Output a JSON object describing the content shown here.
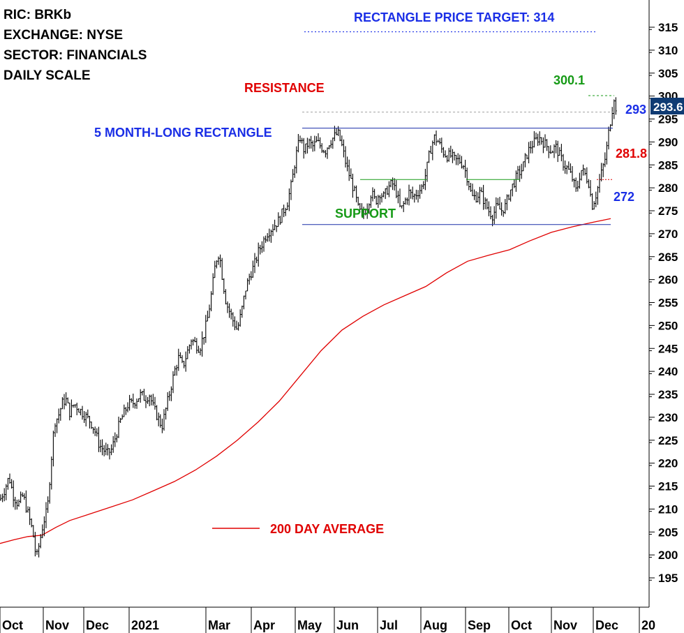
{
  "chart_data": {
    "type": "ohlc-bar",
    "info": {
      "lines": [
        "RIC: BRKb",
        "EXCHANGE: NYSE",
        "SECTOR: FINANCIALS",
        "DAILY SCALE"
      ]
    },
    "annotations": {
      "target": "RECTANGLE PRICE TARGET: 314",
      "pattern": "5 MONTH-LONG RECTANGLE",
      "resistance": "RESISTANCE",
      "support": "SUPPORT",
      "level_300": "300.1",
      "level_293": "293",
      "level_281": "281.8",
      "level_272": "272",
      "last_price": "293.6",
      "ma_legend": "200 DAY  AVERAGE"
    },
    "y_ticks": [
      "195",
      "200",
      "205",
      "210",
      "215",
      "220",
      "225",
      "230",
      "235",
      "240",
      "245",
      "250",
      "255",
      "260",
      "265",
      "270",
      "275",
      "280",
      "285",
      "290",
      "295",
      "300",
      "305",
      "310",
      "315"
    ],
    "y_range": [
      190,
      318
    ],
    "x_ticks": [
      "Oct",
      "Nov",
      "Dec",
      "2021",
      "Mar",
      "Apr",
      "May",
      "Jun",
      "Jul",
      "Aug",
      "Sep",
      "Oct",
      "Nov",
      "Dec",
      "20"
    ],
    "levels": {
      "resistance": 293,
      "support": 272,
      "breakout_high": 300.1,
      "target": 314,
      "mid_left": 281.8,
      "mid_right": 281.8,
      "top_dashed": 296.5
    },
    "price_path": [
      [
        0,
        212
      ],
      [
        6,
        214
      ],
      [
        13,
        217
      ],
      [
        19,
        213
      ],
      [
        26,
        211
      ],
      [
        33,
        213
      ],
      [
        40,
        209
      ],
      [
        47,
        205
      ],
      [
        52,
        199
      ],
      [
        57,
        203
      ],
      [
        62,
        207
      ],
      [
        68,
        210
      ],
      [
        73,
        220
      ],
      [
        78,
        229
      ],
      [
        83,
        230
      ],
      [
        89,
        233
      ],
      [
        94,
        234
      ],
      [
        100,
        231
      ],
      [
        106,
        233
      ],
      [
        112,
        232
      ],
      [
        118,
        231
      ],
      [
        124,
        230
      ],
      [
        130,
        229
      ],
      [
        136,
        227
      ],
      [
        142,
        224
      ],
      [
        148,
        223
      ],
      [
        154,
        222
      ],
      [
        160,
        223
      ],
      [
        166,
        226
      ],
      [
        172,
        229
      ],
      [
        178,
        231
      ],
      [
        184,
        233
      ],
      [
        190,
        233
      ],
      [
        196,
        234
      ],
      [
        202,
        235
      ],
      [
        208,
        234
      ],
      [
        214,
        235
      ],
      [
        220,
        232
      ],
      [
        226,
        230
      ],
      [
        232,
        228
      ],
      [
        238,
        232
      ],
      [
        244,
        236
      ],
      [
        250,
        240
      ],
      [
        256,
        243
      ],
      [
        262,
        241
      ],
      [
        268,
        244
      ],
      [
        274,
        247
      ],
      [
        280,
        246
      ],
      [
        286,
        245
      ],
      [
        292,
        248
      ],
      [
        298,
        252
      ],
      [
        304,
        258
      ],
      [
        309,
        264
      ],
      [
        314,
        266
      ],
      [
        319,
        260
      ],
      [
        324,
        255
      ],
      [
        329,
        253
      ],
      [
        334,
        251
      ],
      [
        340,
        249
      ],
      [
        346,
        253
      ],
      [
        352,
        258
      ],
      [
        358,
        261
      ],
      [
        364,
        263
      ],
      [
        370,
        266
      ],
      [
        376,
        268
      ],
      [
        382,
        270
      ],
      [
        388,
        271
      ],
      [
        394,
        272
      ],
      [
        400,
        273
      ],
      [
        406,
        275
      ],
      [
        412,
        277
      ],
      [
        418,
        281
      ],
      [
        424,
        287
      ],
      [
        430,
        291
      ],
      [
        436,
        288
      ],
      [
        442,
        290
      ],
      [
        448,
        289
      ],
      [
        454,
        290
      ],
      [
        460,
        289
      ],
      [
        466,
        288
      ],
      [
        472,
        290
      ],
      [
        478,
        291
      ],
      [
        484,
        292
      ],
      [
        490,
        289
      ],
      [
        496,
        285
      ],
      [
        502,
        282
      ],
      [
        508,
        279
      ],
      [
        514,
        275
      ],
      [
        520,
        274
      ],
      [
        526,
        276
      ],
      [
        532,
        279
      ],
      [
        538,
        277
      ],
      [
        544,
        279
      ],
      [
        550,
        278
      ],
      [
        556,
        280
      ],
      [
        562,
        281
      ],
      [
        568,
        279
      ],
      [
        574,
        275
      ],
      [
        580,
        277
      ],
      [
        586,
        279
      ],
      [
        592,
        278
      ],
      [
        598,
        279
      ],
      [
        604,
        280
      ],
      [
        610,
        283
      ],
      [
        616,
        288
      ],
      [
        622,
        291
      ],
      [
        628,
        290
      ],
      [
        634,
        288
      ],
      [
        640,
        287
      ],
      [
        646,
        287
      ],
      [
        652,
        286
      ],
      [
        658,
        286
      ],
      [
        664,
        285
      ],
      [
        670,
        282
      ],
      [
        676,
        278
      ],
      [
        682,
        278
      ],
      [
        688,
        279
      ],
      [
        694,
        277
      ],
      [
        700,
        275
      ],
      [
        706,
        274
      ],
      [
        712,
        276
      ],
      [
        718,
        275
      ],
      [
        724,
        276
      ],
      [
        730,
        279
      ],
      [
        736,
        281
      ],
      [
        742,
        283
      ],
      [
        748,
        284
      ],
      [
        754,
        287
      ],
      [
        760,
        289
      ],
      [
        766,
        290
      ],
      [
        772,
        291
      ],
      [
        778,
        290
      ],
      [
        784,
        289
      ],
      [
        790,
        288
      ],
      [
        796,
        289
      ],
      [
        802,
        287
      ],
      [
        808,
        285
      ],
      [
        814,
        284
      ],
      [
        820,
        282
      ],
      [
        826,
        279
      ],
      [
        832,
        284
      ],
      [
        838,
        283
      ],
      [
        844,
        281
      ],
      [
        848,
        276
      ],
      [
        853,
        278
      ],
      [
        858,
        281
      ],
      [
        863,
        284
      ],
      [
        868,
        287
      ],
      [
        872,
        292
      ],
      [
        876,
        296
      ],
      [
        880,
        300
      ],
      [
        884,
        294
      ]
    ],
    "ma_path": [
      [
        0,
        202.5
      ],
      [
        20,
        203.3
      ],
      [
        40,
        204
      ],
      [
        60,
        204.3
      ],
      [
        80,
        206
      ],
      [
        100,
        207.5
      ],
      [
        130,
        209
      ],
      [
        160,
        210.5
      ],
      [
        190,
        212
      ],
      [
        220,
        214
      ],
      [
        250,
        216
      ],
      [
        280,
        218.5
      ],
      [
        310,
        221.5
      ],
      [
        340,
        225
      ],
      [
        370,
        229
      ],
      [
        400,
        233.5
      ],
      [
        430,
        239
      ],
      [
        460,
        244.5
      ],
      [
        490,
        249
      ],
      [
        520,
        252
      ],
      [
        550,
        254.5
      ],
      [
        580,
        256.5
      ],
      [
        610,
        258.5
      ],
      [
        640,
        261.5
      ],
      [
        670,
        264
      ],
      [
        700,
        265.3
      ],
      [
        730,
        266.5
      ],
      [
        760,
        268.5
      ],
      [
        790,
        270.3
      ],
      [
        820,
        271.5
      ],
      [
        850,
        272.5
      ],
      [
        875,
        273.3
      ]
    ]
  }
}
